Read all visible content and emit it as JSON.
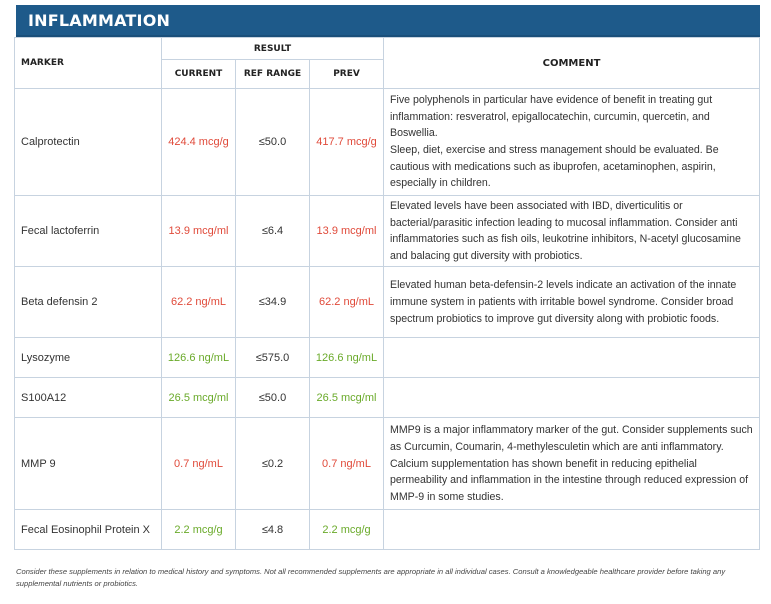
{
  "section_title": "INFLAMMATION",
  "headers": {
    "marker": "MARKER",
    "result": "RESULT",
    "current": "CURRENT",
    "ref_range": "REF RANGE",
    "prev": "PREV",
    "comment": "COMMENT"
  },
  "rows": [
    {
      "marker": "Calprotectin",
      "current": "424.4 mcg/g",
      "ref": "≤50.0",
      "prev": "417.7 mcg/g",
      "status": "high",
      "comment": "Five polyphenols in particular have evidence of benefit in treating gut inflammation: resveratrol, epigallocatechin, curcumin, quercetin, and Boswellia.\nSleep, diet, exercise and stress management should be evaluated. Be cautious with medications such as ibuprofen, acetaminophen, aspirin, especially in children."
    },
    {
      "marker": "Fecal lactoferrin",
      "current": "13.9 mcg/ml",
      "ref": "≤6.4",
      "prev": "13.9 mcg/ml",
      "status": "high",
      "comment": "Elevated levels have been associated with IBD, diverticulitis or bacterial/parasitic infection leading to mucosal inflammation. Consider anti inflammatories such as fish oils, leukotrine inhibitors, N-acetyl glucosamine and balacing gut diversity with probiotics."
    },
    {
      "marker": "Beta defensin 2",
      "current": "62.2 ng/mL",
      "ref": "≤34.9",
      "prev": "62.2 ng/mL",
      "status": "high",
      "comment": "Elevated human beta-defensin-2 levels indicate an activation of the innate immune system in patients with irritable bowel syndrome. Consider broad spectrum probiotics to improve gut diversity along with probiotic foods."
    },
    {
      "marker": "Lysozyme",
      "current": "126.6 ng/mL",
      "ref": "≤575.0",
      "prev": "126.6 ng/mL",
      "status": "normal",
      "comment": ""
    },
    {
      "marker": "S100A12",
      "current": "26.5 mcg/ml",
      "ref": "≤50.0",
      "prev": "26.5 mcg/ml",
      "status": "normal",
      "comment": ""
    },
    {
      "marker": "MMP 9",
      "current": "0.7 ng/mL",
      "ref": "≤0.2",
      "prev": "0.7 ng/mL",
      "status": "high",
      "comment": "MMP9 is a major inflammatory marker of the gut. Consider supplements such as Curcumin, Coumarin, 4-methylesculetin which are anti inflammatory. Calcium supplementation has shown benefit in reducing epithelial permeability and inflammation in the intestine through reduced expression of MMP-9 in some studies."
    },
    {
      "marker": "Fecal Eosinophil Protein X",
      "current": "2.2 mcg/g",
      "ref": "≤4.8",
      "prev": "2.2 mcg/g",
      "status": "normal",
      "comment": ""
    }
  ],
  "colors": {
    "high": "#e04a3a",
    "normal": "#6aaa2a",
    "banner": "#1e5a8a"
  },
  "footer": "Consider these supplements in relation to medical history and symptoms. Not all recommended supplements are appropriate in all individual cases. Consult a knowledgeable healthcare provider before taking any supplemental nutrients or probiotics."
}
